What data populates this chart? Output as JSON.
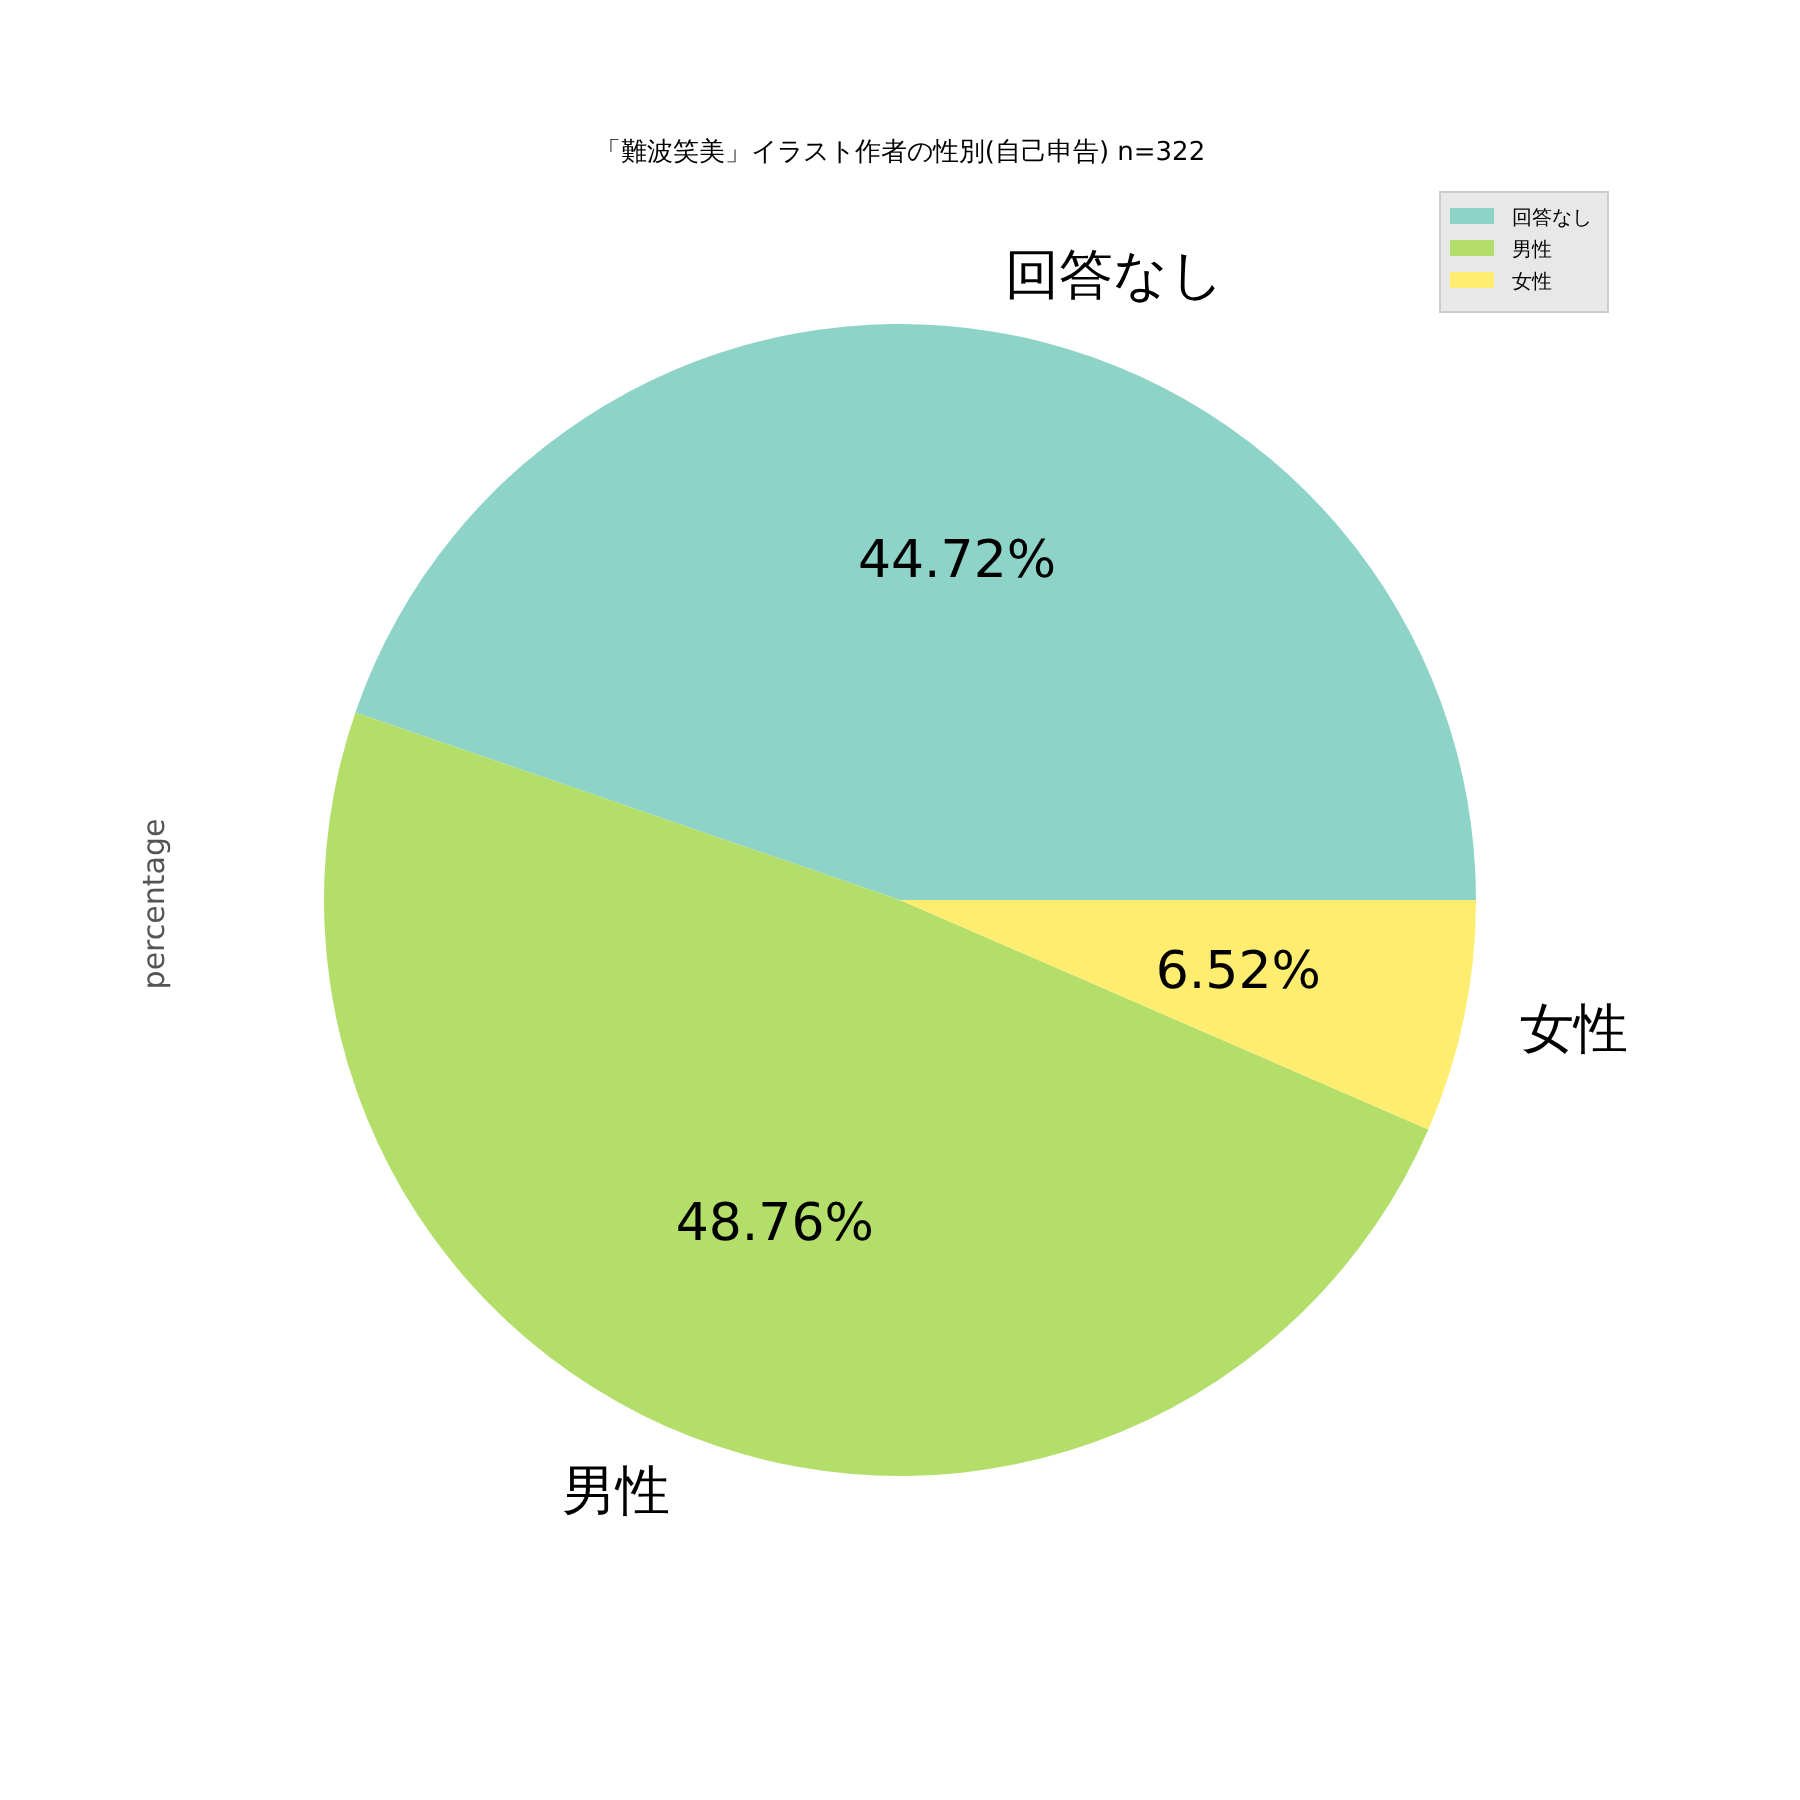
{
  "chart_data": {
    "type": "pie",
    "title": "「難波笑美」イラスト作者の性別(自己申告) n=322",
    "ylabel": "percentage",
    "categories": [
      "回答なし",
      "男性",
      "女性"
    ],
    "values": [
      44.72,
      48.76,
      6.52
    ],
    "colors": [
      "#8dd3c7",
      "#b3de69",
      "#ffed6f"
    ],
    "value_labels": [
      "44.72%",
      "48.76%",
      "6.52%"
    ],
    "legend": "top right"
  }
}
